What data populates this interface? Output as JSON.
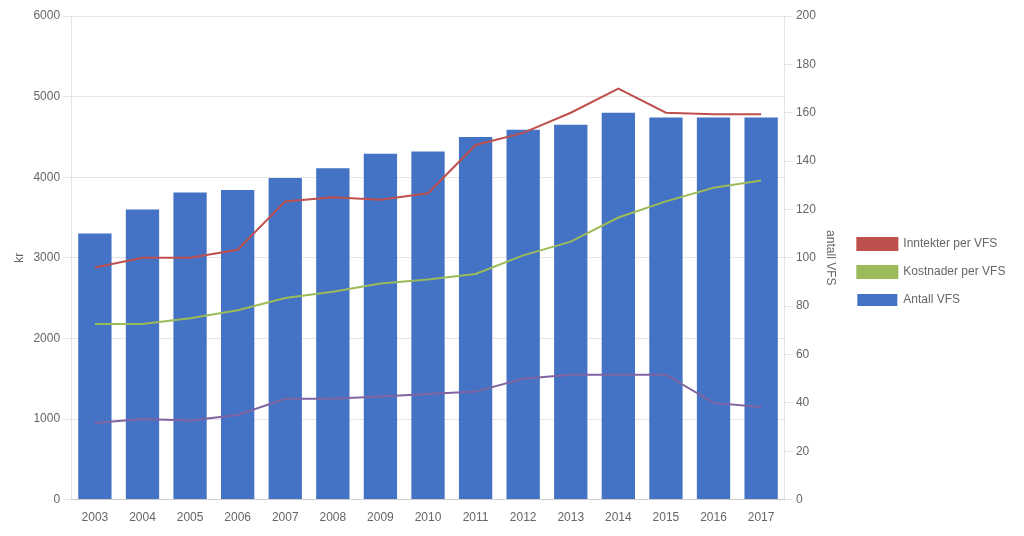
{
  "chart_data": {
    "type": "bar",
    "categories": [
      "2003",
      "2004",
      "2005",
      "2006",
      "2007",
      "2008",
      "2009",
      "2010",
      "2011",
      "2012",
      "2013",
      "2014",
      "2015",
      "2016",
      "2017"
    ],
    "series": [
      {
        "name": "Antall VFS",
        "type": "bar",
        "color": "#4472C4",
        "axis": "y2",
        "values": [
          110,
          120,
          127,
          128,
          133,
          137,
          143,
          144,
          150,
          153,
          155,
          160,
          158,
          158,
          158
        ]
      },
      {
        "name": "Inntekter per VFS",
        "type": "line",
        "color": "#C0504D",
        "values": [
          2880,
          3000,
          3000,
          3100,
          3700,
          3750,
          3720,
          3800,
          4400,
          4550,
          4800,
          5100,
          4800,
          4780,
          4780
        ]
      },
      {
        "name": "Kostnader per VFS",
        "type": "line",
        "color": "#9BBB59",
        "values": [
          2180,
          2180,
          2250,
          2350,
          2500,
          2580,
          2680,
          2730,
          2800,
          3030,
          3200,
          3500,
          3700,
          3870,
          3960
        ]
      },
      {
        "type": "line",
        "color": "#8064A2",
        "values": [
          950,
          1000,
          980,
          1050,
          1250,
          1250,
          1280,
          1310,
          1340,
          1500,
          1550,
          1550,
          1550,
          1200,
          1150
        ]
      }
    ],
    "ylabel": "kr",
    "y2label": "antall VFS",
    "ylim": [
      0,
      6000
    ],
    "yticks": [
      0,
      1000,
      2000,
      3000,
      4000,
      5000,
      6000
    ],
    "y2lim": [
      0,
      200
    ],
    "y2ticks": [
      0,
      20,
      40,
      60,
      80,
      100,
      120,
      140,
      160,
      180,
      200
    ],
    "grid": true,
    "legend": "right"
  }
}
